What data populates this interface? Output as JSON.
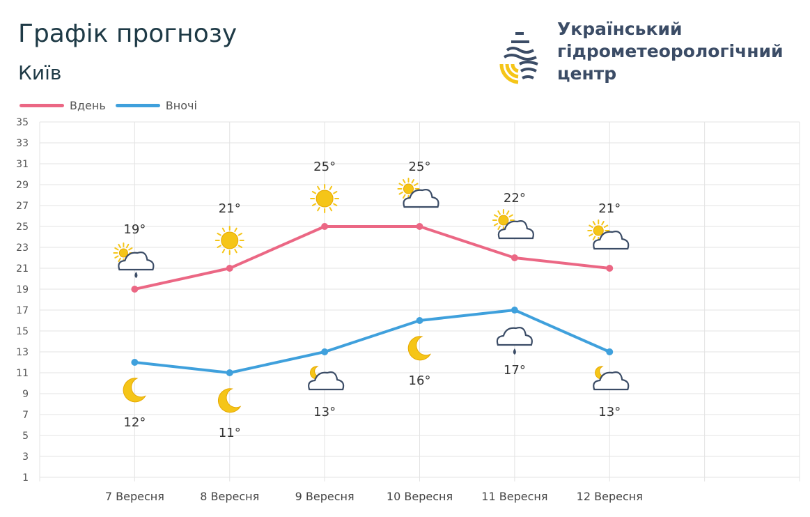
{
  "header": {
    "title": "Графік прогнозу",
    "city": "Київ"
  },
  "organization": {
    "name_lines": [
      "Український",
      "гідрометеорологічний",
      "центр"
    ]
  },
  "colors": {
    "day": "#eb6784",
    "night": "#3fa0dc",
    "grid": "#e3e3e3",
    "text": "#333333",
    "sun": "#f5c518",
    "cloud": "#3b4c66"
  },
  "chart_data": {
    "type": "line",
    "categories": [
      "7 Вересня",
      "8 Вересня",
      "9 Вересня",
      "10 Вересня",
      "11 Вересня",
      "12 Вересня"
    ],
    "series": [
      {
        "name": "Вдень",
        "values": [
          19,
          21,
          25,
          25,
          22,
          21
        ],
        "labels": [
          "19°",
          "21°",
          "25°",
          "25°",
          "22°",
          "21°"
        ],
        "icons": [
          "partly-cloudy-rain-icon",
          "sun-icon",
          "sun-icon",
          "partly-cloudy-icon",
          "partly-cloudy-icon",
          "partly-cloudy-icon"
        ]
      },
      {
        "name": "Вночі",
        "values": [
          12,
          11,
          13,
          16,
          17,
          13
        ],
        "labels": [
          "12°",
          "11°",
          "13°",
          "16°",
          "17°",
          "13°"
        ],
        "icons": [
          "moon-icon",
          "moon-icon",
          "moon-cloud-icon",
          "moon-icon",
          "cloud-rain-icon",
          "moon-cloud-icon"
        ]
      }
    ],
    "y_ticks": [
      "1",
      "3",
      "5",
      "7",
      "9",
      "11",
      "13",
      "15",
      "17",
      "19",
      "21",
      "23",
      "25",
      "27",
      "29",
      "31",
      "33",
      "35"
    ],
    "ylim": [
      1,
      35
    ],
    "grid": true,
    "legend_position": "top-left"
  }
}
